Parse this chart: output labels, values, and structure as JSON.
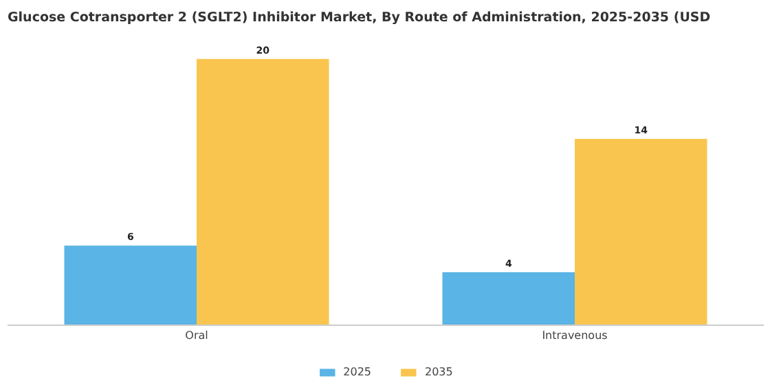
{
  "chart_data": {
    "type": "bar",
    "title": "Glucose Cotransporter 2 (SGLT2) Inhibitor Market, By Route of Administration, 2025-2035 (USD",
    "categories": [
      "Oral",
      "Intravenous"
    ],
    "series": [
      {
        "name": "2025",
        "color": "#5ab4e5",
        "values": [
          6,
          4
        ]
      },
      {
        "name": "2035",
        "color": "#f9c54e",
        "values": [
          20,
          14
        ]
      }
    ],
    "data_labels": true,
    "legend": "bottom",
    "grid": false
  }
}
